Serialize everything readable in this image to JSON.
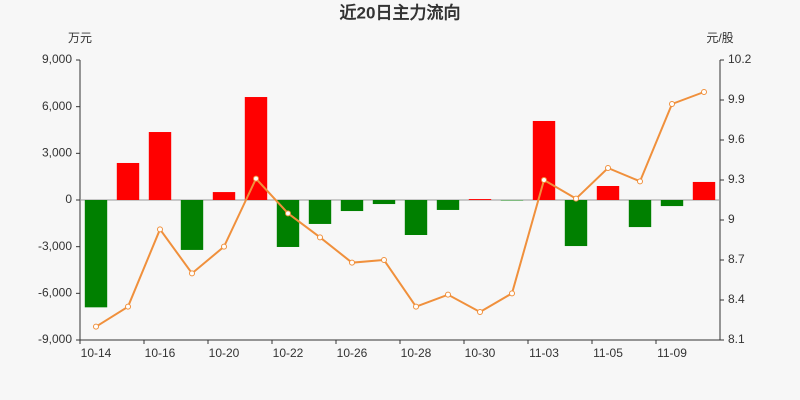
{
  "chart_data": {
    "type": "bar-line",
    "title": "近20日主力流向",
    "y_label": "万元",
    "y2_label": "元/股",
    "categories": [
      "10-14",
      null,
      "10-16",
      null,
      "10-20",
      null,
      "10-22",
      null,
      "10-26",
      null,
      "10-28",
      null,
      "10-30",
      null,
      "11-03",
      null,
      "11-05",
      null,
      "11-09",
      null
    ],
    "series": [
      {
        "type": "bar",
        "positive_color": "#ff0000",
        "negative_color": "#008000",
        "values": [
          -6900,
          2380,
          4370,
          -3210,
          510,
          6620,
          -3020,
          -1540,
          -710,
          -260,
          -2250,
          -640,
          60,
          -30,
          5080,
          -2960,
          900,
          -1740,
          -390,
          1160
        ]
      },
      {
        "type": "line",
        "axis": "y2",
        "color": "#f0903c",
        "values": [
          8.2,
          8.35,
          8.93,
          8.6,
          8.8,
          9.31,
          9.05,
          8.87,
          8.68,
          8.7,
          8.35,
          8.44,
          8.31,
          8.45,
          9.3,
          9.16,
          9.39,
          9.29,
          9.87,
          9.96
        ]
      }
    ],
    "ylim": [
      -9000,
      9000
    ],
    "yticks": [
      {
        "value": -9000,
        "label": "-9,000"
      },
      {
        "value": -6000,
        "label": "-6,000"
      },
      {
        "value": -3000,
        "label": "-3,000"
      },
      0,
      {
        "value": 3000,
        "label": "3,000"
      },
      {
        "value": 6000,
        "label": "6,000"
      },
      {
        "value": 9000,
        "label": "9,000"
      }
    ],
    "y2lim": [
      8.1,
      10.2
    ],
    "y2ticks": [
      8.1,
      8.4,
      8.7,
      9,
      9.3,
      9.6,
      9.9,
      10.2
    ]
  }
}
